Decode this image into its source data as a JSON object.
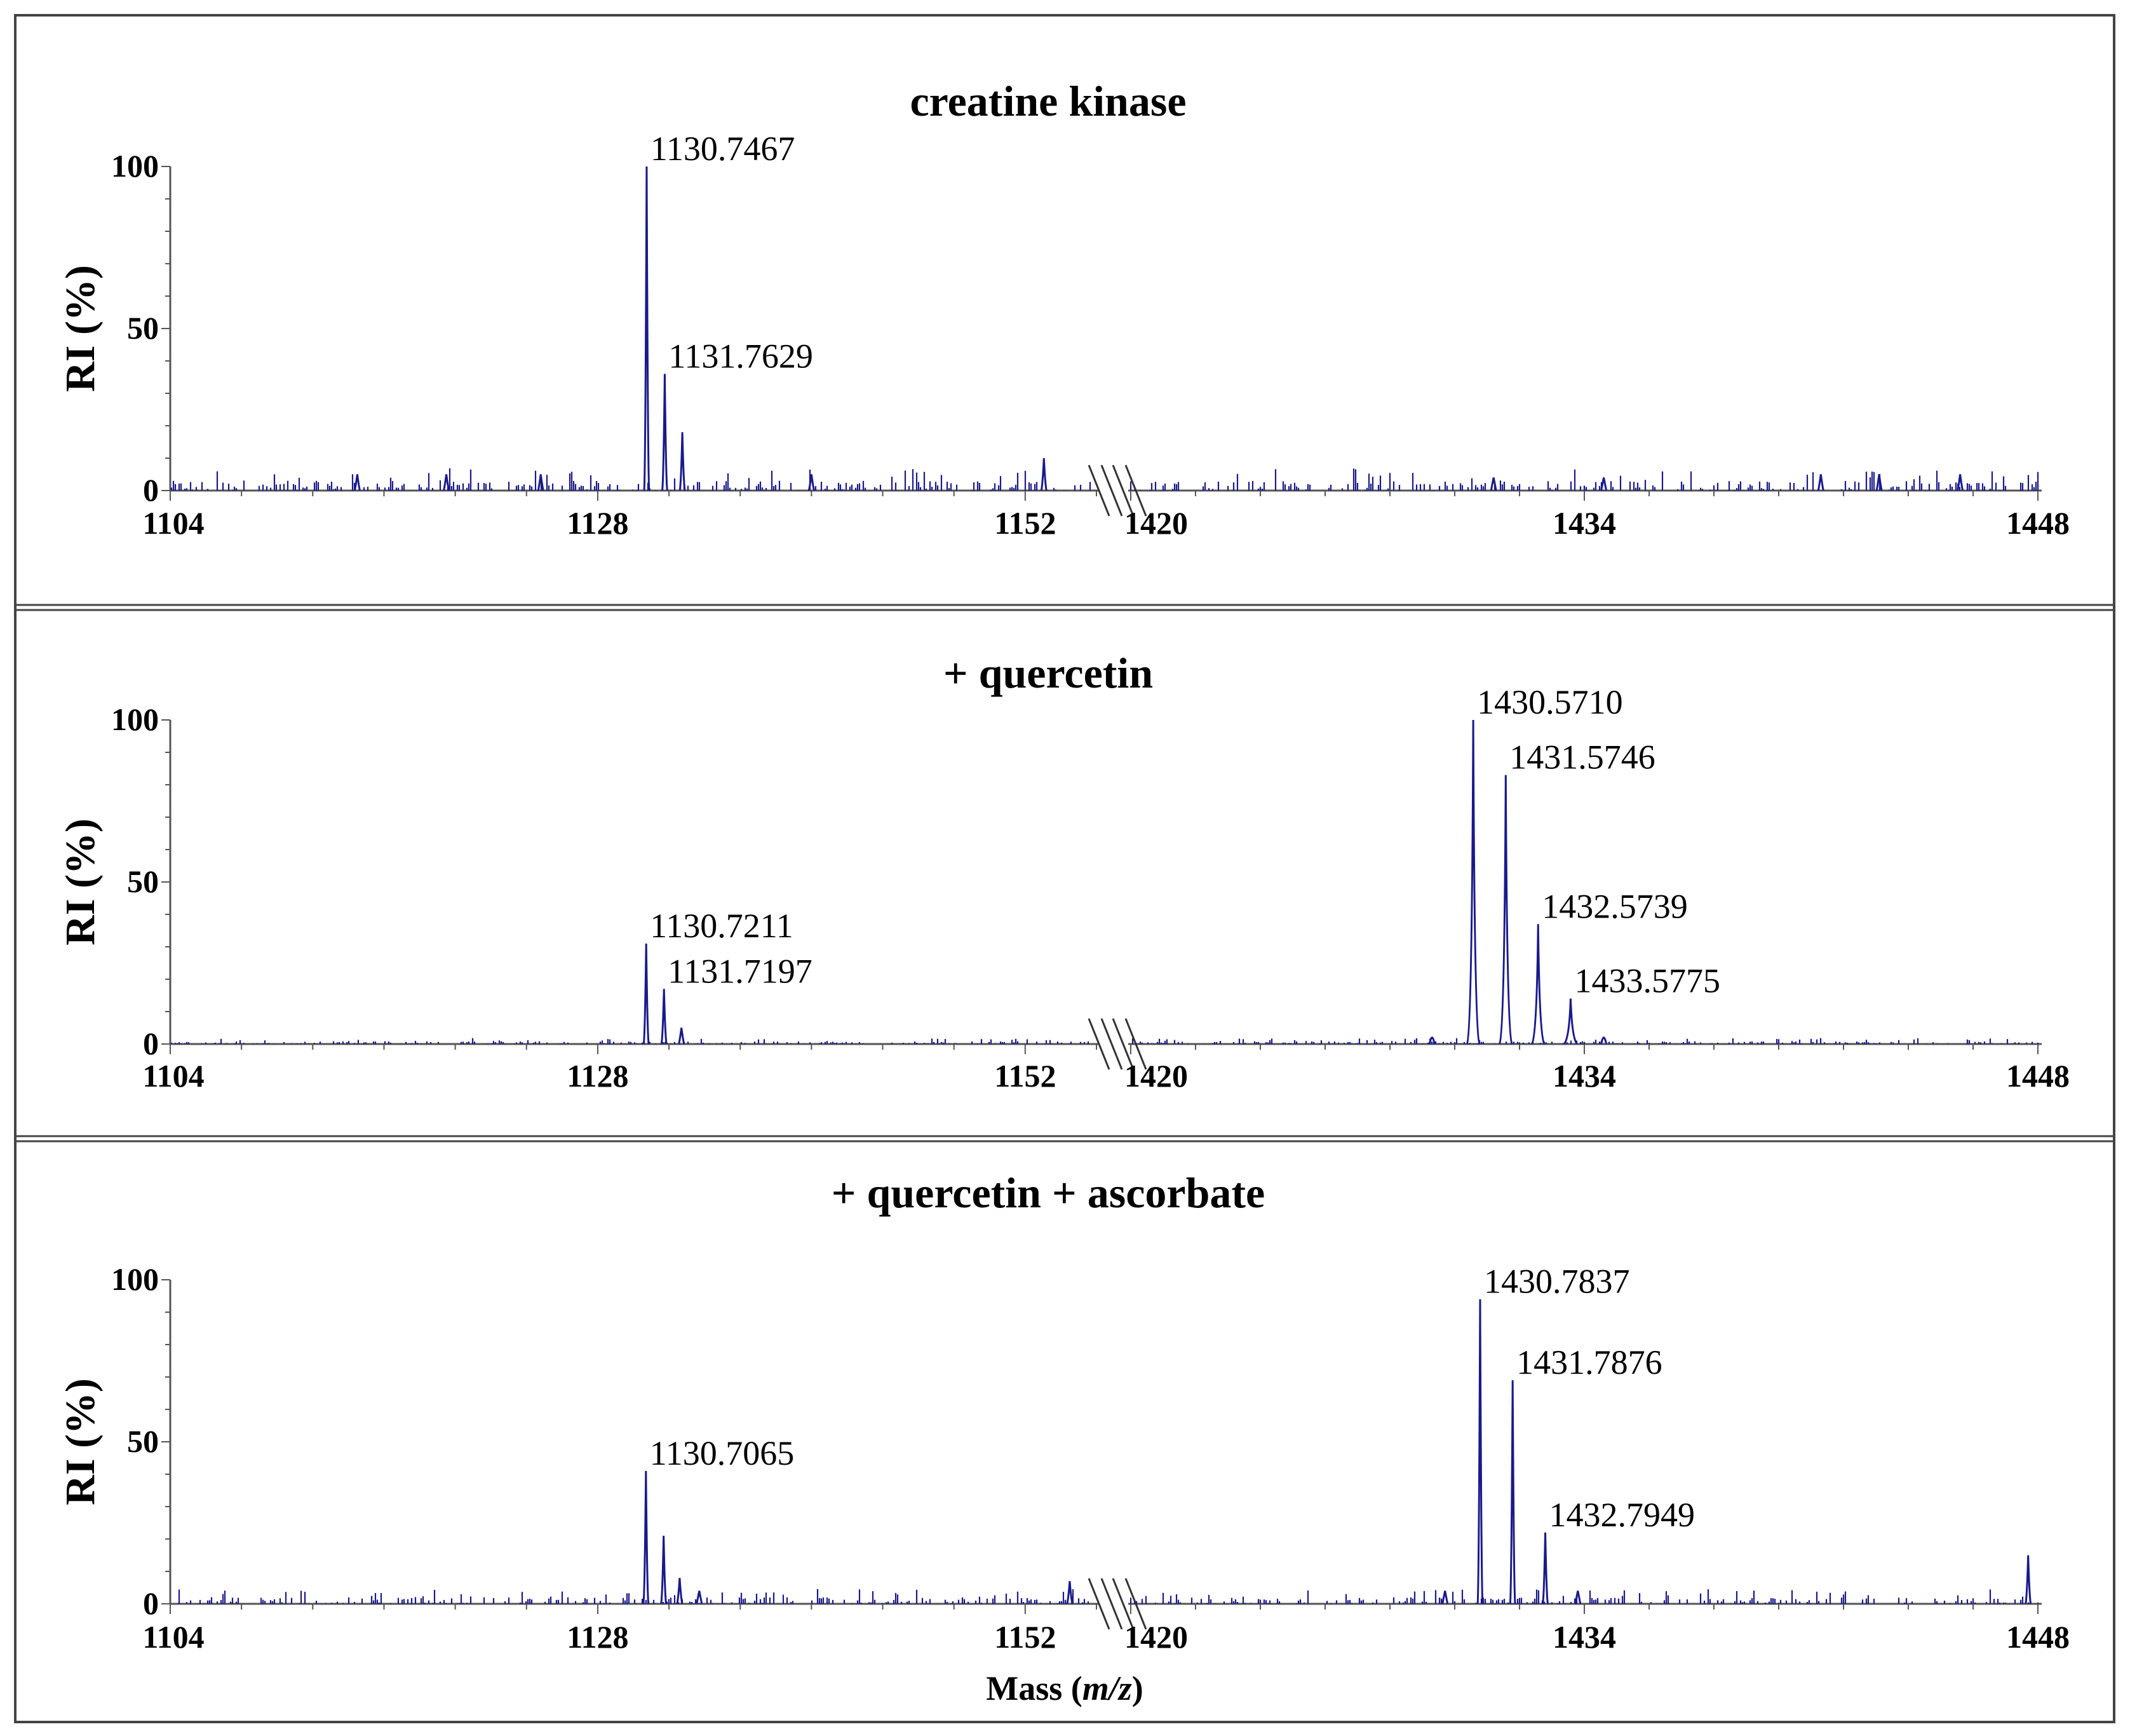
{
  "figure": {
    "frame_color": "#444444",
    "line_color": "#1a1a8c",
    "text_color": "#000000",
    "xlabel_prefix": "Mass (",
    "xlabel_italic": "m/z",
    "xlabel_suffix": ")"
  },
  "chart_data": [
    {
      "type": "line",
      "title": "creatine kinase",
      "ylabel": "RI (%)",
      "ylim": [
        0,
        100
      ],
      "yticks": [
        "0",
        "50",
        "100"
      ],
      "x_axis_break": true,
      "x_segments": [
        {
          "range": [
            1104,
            1156
          ],
          "ticks": [
            "1104",
            "1128",
            "1152"
          ]
        },
        {
          "range": [
            1420,
            1448
          ],
          "ticks": [
            "1420",
            "1434",
            "1448"
          ]
        }
      ],
      "peaks": [
        {
          "x": 1130.7467,
          "y": 100,
          "label": "1130.7467"
        },
        {
          "x": 1131.7629,
          "y": 36,
          "label": "1131.7629"
        },
        {
          "x": 1132.75,
          "y": 18,
          "label": ""
        },
        {
          "x": 1153.05,
          "y": 10,
          "label": ""
        },
        {
          "x": 1124.8,
          "y": 5,
          "label": ""
        },
        {
          "x": 1119.5,
          "y": 5,
          "label": ""
        },
        {
          "x": 1140.0,
          "y": 5,
          "label": ""
        },
        {
          "x": 1114.5,
          "y": 5,
          "label": ""
        },
        {
          "x": 1431.2,
          "y": 4,
          "label": ""
        },
        {
          "x": 1434.6,
          "y": 4,
          "label": ""
        },
        {
          "x": 1441.3,
          "y": 5,
          "label": ""
        },
        {
          "x": 1443.1,
          "y": 5,
          "label": ""
        },
        {
          "x": 1445.6,
          "y": 5,
          "label": ""
        }
      ],
      "noise": 3
    },
    {
      "type": "line",
      "title": "+ quercetin",
      "ylabel": "RI (%)",
      "ylim": [
        0,
        100
      ],
      "yticks": [
        "0",
        "50",
        "100"
      ],
      "x_axis_break": true,
      "x_segments": [
        {
          "range": [
            1104,
            1156
          ],
          "ticks": [
            "1104",
            "1128",
            "1152"
          ]
        },
        {
          "range": [
            1420,
            1448
          ],
          "ticks": [
            "1420",
            "1434",
            "1448"
          ]
        }
      ],
      "peaks": [
        {
          "x": 1130.7211,
          "y": 31,
          "label": "1130.7211"
        },
        {
          "x": 1131.7197,
          "y": 17,
          "label": "1131.7197"
        },
        {
          "x": 1132.7,
          "y": 5,
          "label": ""
        },
        {
          "x": 1430.571,
          "y": 100,
          "label": "1430.5710",
          "broad": true
        },
        {
          "x": 1431.5746,
          "y": 83,
          "label": "1431.5746",
          "broad": true
        },
        {
          "x": 1432.5739,
          "y": 37,
          "label": "1432.5739",
          "broad": true
        },
        {
          "x": 1433.5775,
          "y": 14,
          "label": "1433.5775",
          "broad": true
        },
        {
          "x": 1434.6,
          "y": 2,
          "label": ""
        },
        {
          "x": 1429.3,
          "y": 2,
          "label": ""
        }
      ],
      "noise": 0.8
    },
    {
      "type": "line",
      "title": "+ quercetin + ascorbate",
      "ylabel": "RI (%)",
      "ylim": [
        0,
        100
      ],
      "yticks": [
        "0",
        "50",
        "100"
      ],
      "x_axis_break": true,
      "x_segments": [
        {
          "range": [
            1104,
            1156
          ],
          "ticks": [
            "1104",
            "1128",
            "1152"
          ]
        },
        {
          "range": [
            1420,
            1448
          ],
          "ticks": [
            "1420",
            "1434",
            "1448"
          ]
        }
      ],
      "peaks": [
        {
          "x": 1130.7065,
          "y": 41,
          "label": "1130.7065"
        },
        {
          "x": 1131.7,
          "y": 21,
          "label": ""
        },
        {
          "x": 1132.6,
          "y": 8,
          "label": ""
        },
        {
          "x": 1133.7,
          "y": 4,
          "label": ""
        },
        {
          "x": 1430.7837,
          "y": 94,
          "label": "1430.7837"
        },
        {
          "x": 1431.7876,
          "y": 69,
          "label": "1431.7876"
        },
        {
          "x": 1432.7949,
          "y": 22,
          "label": "1432.7949"
        },
        {
          "x": 1433.8,
          "y": 4,
          "label": ""
        },
        {
          "x": 1447.7,
          "y": 15,
          "label": ""
        },
        {
          "x": 1429.7,
          "y": 4,
          "label": ""
        },
        {
          "x": 1154.5,
          "y": 7,
          "label": ""
        }
      ],
      "noise": 2
    }
  ]
}
